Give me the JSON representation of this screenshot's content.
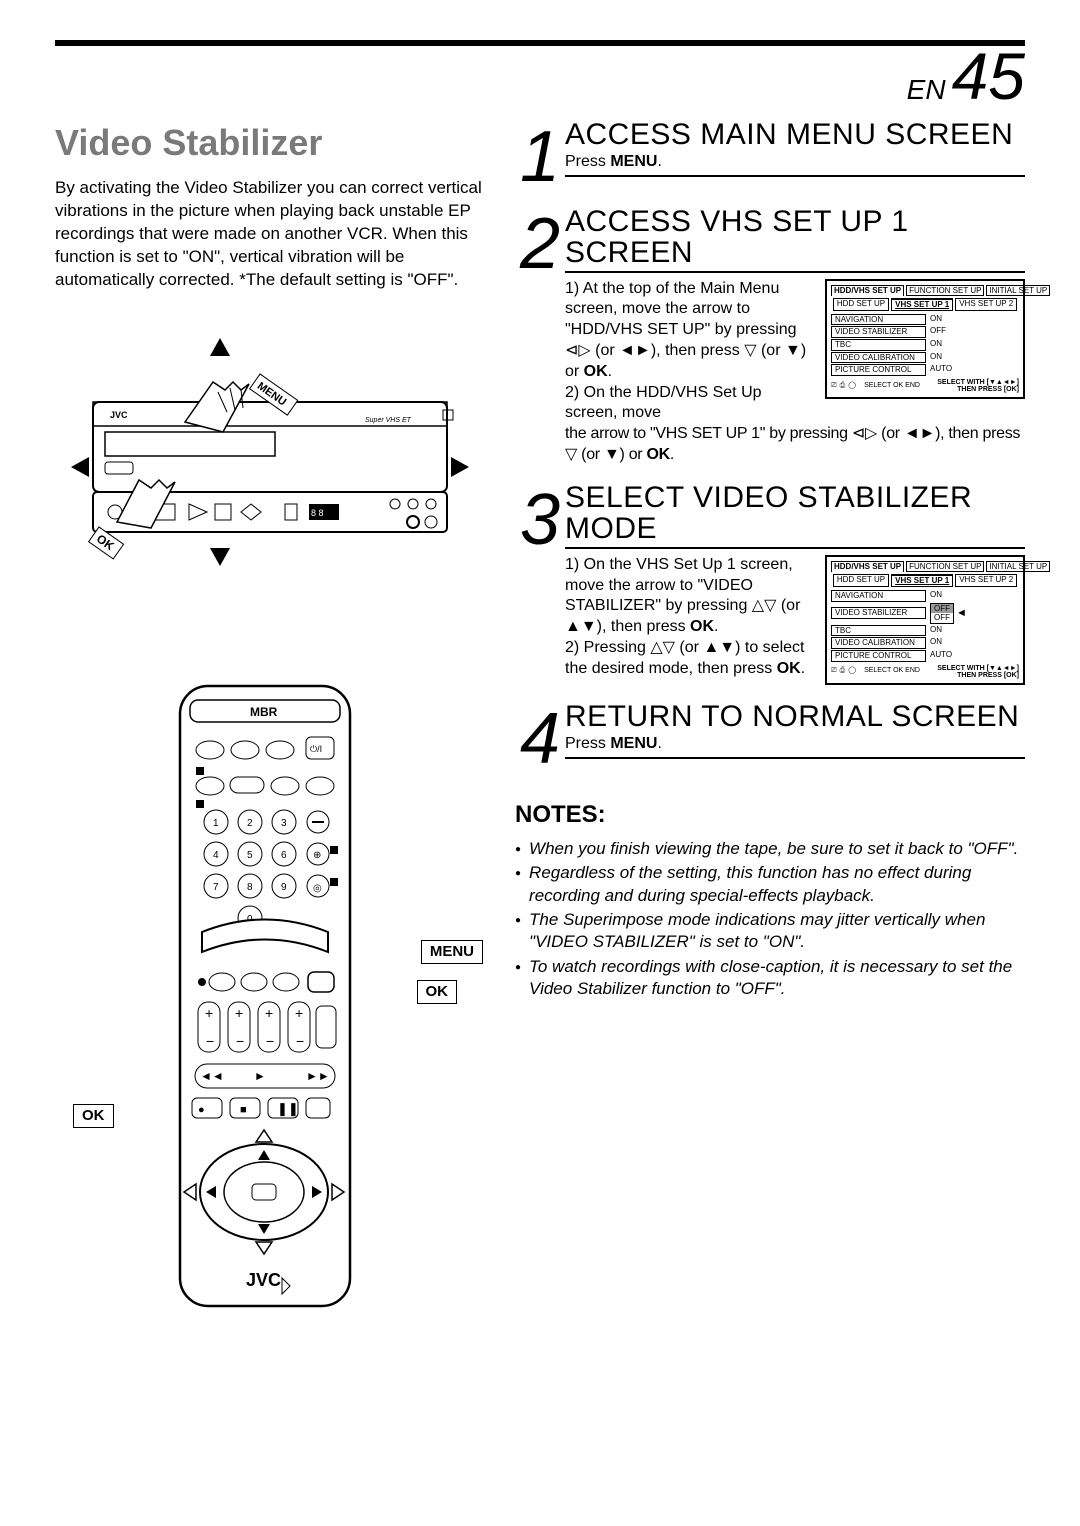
{
  "page": {
    "lang_prefix": "EN",
    "number": "45"
  },
  "left": {
    "title": "Video Stabilizer",
    "intro": "By activating the Video Stabilizer you can correct vertical vibrations in the picture when playing back unstable EP recordings that were made on another VCR. When this function is set to \"ON\", vertical vibration will be automatically corrected. *The default setting is \"OFF\".",
    "vcr_labels": {
      "menu": "MENU",
      "ok": "OK"
    },
    "remote_labels": {
      "menu": "MENU",
      "ok_right": "OK",
      "ok_left": "OK",
      "brand": "JVC",
      "top": "MBR"
    }
  },
  "steps": [
    {
      "num": "1",
      "title": "ACCESS MAIN MENU SCREEN",
      "text_html": "Press <b>MENU</b>."
    },
    {
      "num": "2",
      "title": "ACCESS VHS SET UP 1 SCREEN",
      "col_text_html": "1) At the top of the Main Menu screen, move the arrow to \"HDD/VHS SET UP\" by pressing <span class='arrow-sym'>⊲▷</span> (or <span class='arrow-sym'>◄►</span>), then press <span class='arrow-sym'>▽</span> (or <span class='arrow-sym'>▼</span>) or <b>OK</b>.<br>2) On the HDD/VHS Set Up screen, move",
      "after_html": "the arrow to \"VHS SET UP 1\" by pressing <span class='arrow-sym'>⊲▷</span> (or <span class='arrow-sym'>◄►</span>), then press <span class='arrow-sym'>▽</span> (or <span class='arrow-sym'>▼</span>) or <b>OK</b>.",
      "osd": {
        "top_tabs": [
          "HDD/VHS SET UP",
          "FUNCTION SET UP",
          "INITIAL SET UP"
        ],
        "top_active": 0,
        "sub_tabs": [
          "HDD SET UP",
          "VHS SET UP 1",
          "VHS SET UP 2"
        ],
        "sub_active": 1,
        "items": [
          {
            "label": "NAVIGATION",
            "value": "ON"
          },
          {
            "label": "VIDEO STABILIZER",
            "value": "OFF"
          },
          {
            "label": "TBC",
            "value": "ON"
          },
          {
            "label": "VIDEO CALIBRATION",
            "value": "ON"
          },
          {
            "label": "PICTURE CONTROL",
            "value": "AUTO"
          }
        ],
        "footer_left": [
          "⎚",
          "PAUSE",
          "⎙",
          "MENU",
          "◯"
        ],
        "footer_left_labels": "SELECT  OK  END",
        "footer_hint": "SELECT WITH [▼▲◄►]\nTHEN PRESS [OK]"
      }
    },
    {
      "num": "3",
      "title": "SELECT VIDEO STABILIZER MODE",
      "col_text_html": "1) On the VHS Set Up 1 screen, move the arrow to \"VIDEO STABILIZER\" by pressing <span class='arrow-sym'>△▽</span> (or <span class='arrow-sym'>▲▼</span>), then press <b>OK</b>.<br>2) Pressing <span class='arrow-sym'>△▽</span> (or <span class='arrow-sym'>▲▼</span>) to select the desired mode, then press <b>OK</b>.",
      "osd": {
        "top_tabs": [
          "HDD/VHS SET UP",
          "FUNCTION SET UP",
          "INITIAL SET UP"
        ],
        "top_active": 0,
        "sub_tabs": [
          "HDD SET UP",
          "VHS SET UP 1",
          "VHS SET UP 2"
        ],
        "sub_active": 1,
        "items_pre": [
          {
            "label": "NAVIGATION",
            "value": "ON"
          }
        ],
        "highlight_label": "VIDEO STABILIZER",
        "highlight_options": [
          "OFF",
          "OFF"
        ],
        "items_post": [
          {
            "label": "TBC",
            "value": "ON"
          },
          {
            "label": "VIDEO CALIBRATION",
            "value": "ON"
          },
          {
            "label": "PICTURE CONTROL",
            "value": "AUTO"
          }
        ],
        "footer_left_labels": "SELECT  OK  END",
        "footer_hint": "SELECT WITH [▼▲◄►]\nTHEN PRESS [OK]"
      }
    },
    {
      "num": "4",
      "title": "RETURN TO NORMAL SCREEN",
      "text_html": "Press <b>MENU</b>."
    }
  ],
  "notes": {
    "heading": "NOTES:",
    "items": [
      "When you finish viewing the tape, be sure to set it back to \"OFF\".",
      "Regardless of the setting, this function has no effect during recording and during special-effects playback.",
      "The Superimpose mode indications may jitter vertically when \"VIDEO STABILIZER\" is set to \"ON\".",
      "To watch recordings with close-caption, it is necessary to set the Video Stabilizer function to \"OFF\"."
    ]
  },
  "style": {
    "title_color": "#7a7a7a",
    "page_bg": "#ffffff",
    "text_color": "#000000"
  }
}
